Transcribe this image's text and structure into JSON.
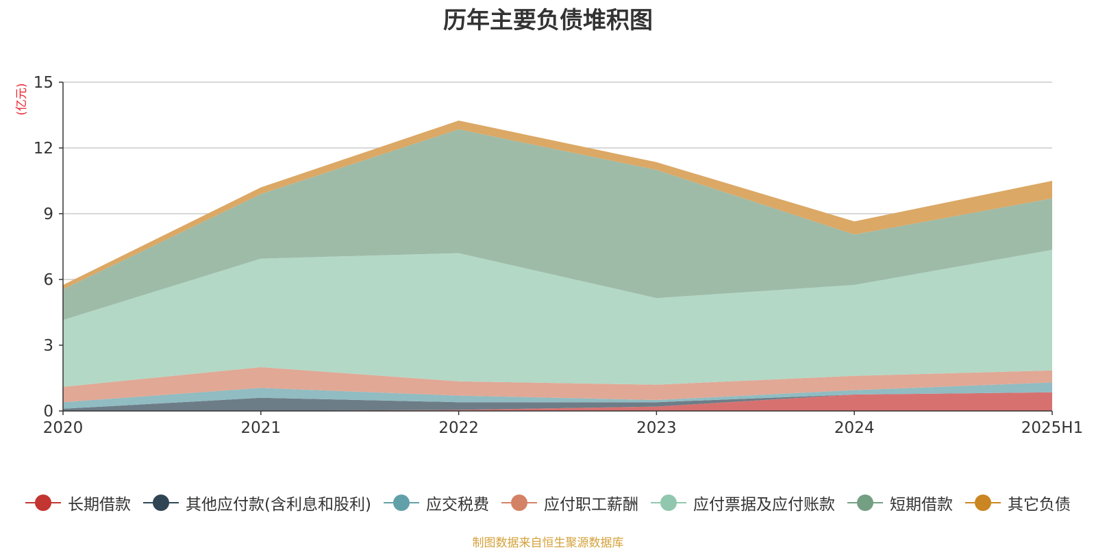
{
  "chart_data": {
    "type": "area",
    "stacked": true,
    "title": "历年主要负债堆积图",
    "unit_label": "(亿元)",
    "categories": [
      "2020",
      "2021",
      "2022",
      "2023",
      "2024",
      "2025H1"
    ],
    "ylim": [
      0,
      15
    ],
    "yticks": [
      "0",
      "3",
      "6",
      "9",
      "12",
      "15"
    ],
    "grid": true,
    "legend_position": "bottom",
    "series": [
      {
        "name": "长期借款",
        "color": "#c23531",
        "fill": "#d77170",
        "values": [
          0.0,
          0.0,
          0.05,
          0.2,
          0.75,
          0.85
        ]
      },
      {
        "name": "其他应付款(含利息和股利)",
        "color": "#2f4554",
        "fill": "#6d7d87",
        "values": [
          0.1,
          0.6,
          0.35,
          0.2,
          0.0,
          0.0
        ]
      },
      {
        "name": "应交税费",
        "color": "#61a0a8",
        "fill": "#90bcc2",
        "values": [
          0.3,
          0.45,
          0.3,
          0.1,
          0.2,
          0.45
        ]
      },
      {
        "name": "应付职工薪酬",
        "color": "#d48265",
        "fill": "#e1a895",
        "values": [
          0.7,
          0.95,
          0.65,
          0.7,
          0.65,
          0.55
        ]
      },
      {
        "name": "应付票据及应付账款",
        "color": "#91c7ae",
        "fill": "#b3d8c6",
        "values": [
          3.05,
          4.95,
          5.85,
          3.95,
          4.15,
          5.5
        ]
      },
      {
        "name": "短期借款",
        "color": "#749f83",
        "fill": "#9ebba8",
        "values": [
          1.4,
          2.95,
          5.65,
          5.85,
          2.3,
          2.35
        ]
      },
      {
        "name": "其它负债",
        "color": "#ca8622",
        "fill": "#dba865",
        "values": [
          0.2,
          0.3,
          0.4,
          0.35,
          0.6,
          0.8
        ]
      }
    ]
  },
  "source_note": "制图数据来自恒生聚源数据库"
}
